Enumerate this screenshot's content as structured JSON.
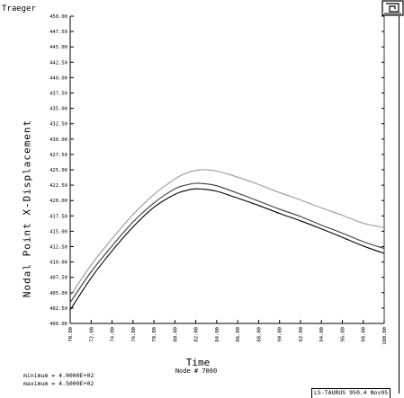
{
  "header": {
    "title": "Traeger"
  },
  "footer": {
    "node_label": "Node # 7000",
    "minimum_label": "minimum =",
    "minimum_value": "4.0000E+02",
    "maximum_label": "maximum =",
    "maximum_value": "4.5000E+02",
    "version": "LS-TAURUS 950.4  Nov95"
  },
  "chart_data": {
    "type": "line",
    "xlabel": "Time",
    "ylabel": "Nodal Point X-Displacement",
    "xlim": [
      70,
      100
    ],
    "ylim": [
      400,
      450
    ],
    "grid": false,
    "x_ticks": [
      "70.00",
      "72.00",
      "74.00",
      "76.00",
      "78.00",
      "80.00",
      "82.00",
      "84.00",
      "86.00",
      "88.00",
      "90.00",
      "92.00",
      "94.00",
      "96.00",
      "98.00",
      "100.00"
    ],
    "y_ticks": [
      "400.00",
      "402.50",
      "405.00",
      "407.50",
      "410.00",
      "412.50",
      "415.00",
      "417.50",
      "420.00",
      "422.50",
      "425.00",
      "427.50",
      "430.00",
      "432.50",
      "435.00",
      "437.50",
      "440.00",
      "442.50",
      "445.00",
      "447.50",
      "450.00"
    ],
    "series": [
      {
        "color": "#9a9a9a",
        "x": [
          70,
          72,
          74,
          76,
          78,
          80,
          81,
          82,
          83,
          84,
          86,
          88,
          90,
          92,
          94,
          96,
          98,
          100
        ],
        "y": [
          404.5,
          409.5,
          413.8,
          417.7,
          421.0,
          423.5,
          424.4,
          424.9,
          425.0,
          424.8,
          423.8,
          422.6,
          421.3,
          420.1,
          418.8,
          417.6,
          416.3,
          415.6
        ]
      },
      {
        "color": "#3a3a3a",
        "x": [
          70,
          72,
          74,
          76,
          78,
          80,
          81,
          82,
          83,
          84,
          86,
          88,
          90,
          92,
          94,
          96,
          98,
          100
        ],
        "y": [
          403.4,
          408.4,
          412.6,
          416.5,
          419.6,
          421.9,
          422.5,
          422.8,
          422.7,
          422.4,
          421.2,
          419.9,
          418.6,
          417.4,
          416.0,
          414.7,
          413.3,
          412.2
        ]
      },
      {
        "color": "#000000",
        "x": [
          70,
          72,
          74,
          76,
          78,
          80,
          81,
          82,
          83,
          84,
          86,
          88,
          90,
          92,
          94,
          96,
          98,
          100
        ],
        "y": [
          402.2,
          407.4,
          411.8,
          415.7,
          418.9,
          421.0,
          421.6,
          421.9,
          421.8,
          421.5,
          420.4,
          419.2,
          417.9,
          416.7,
          415.4,
          414.0,
          412.6,
          411.4
        ]
      }
    ]
  }
}
